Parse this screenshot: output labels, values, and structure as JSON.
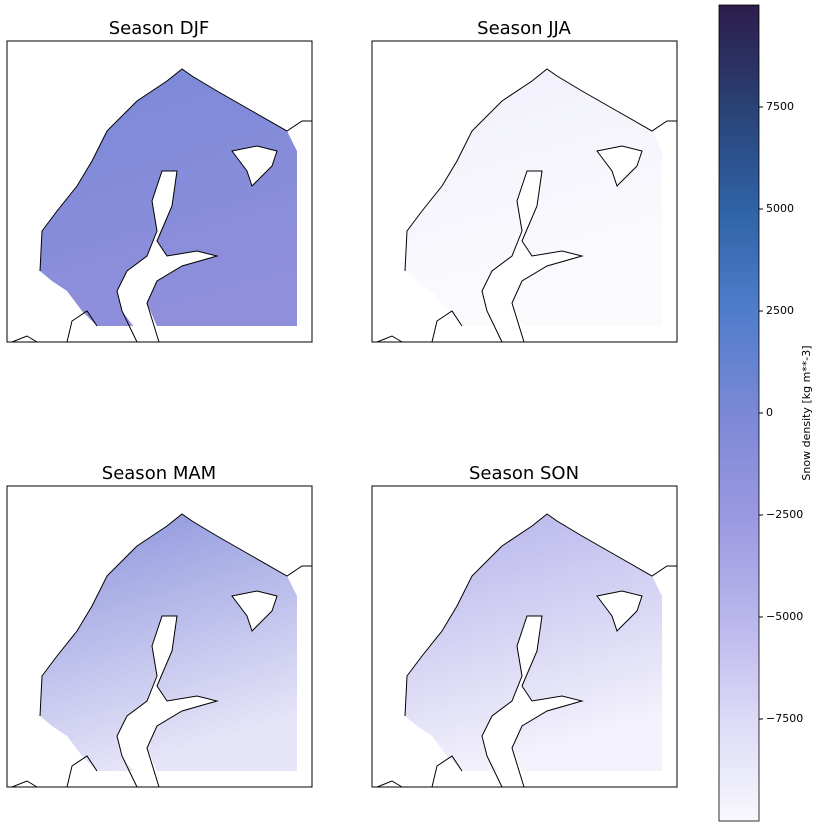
{
  "chart_data": {
    "type": "map",
    "panels": [
      {
        "title": "Season DJF",
        "colors": [
          "#7a89d8",
          "#8f8fdc"
        ]
      },
      {
        "title": "Season JJA",
        "colors": [
          "#f1f0fb",
          "#fbfbfe"
        ]
      },
      {
        "title": "Season MAM",
        "colors": [
          "#8a93dc",
          "#e6e4f8"
        ]
      },
      {
        "title": "Season SON",
        "colors": [
          "#b4b2ea",
          "#f3f2fc"
        ]
      }
    ],
    "colorbar_label": "Snow density [kg m**-3]",
    "ylim": [
      -10000,
      10000
    ],
    "yticks": [
      {
        "value": -7500,
        "label": "−7500"
      },
      {
        "value": -5000,
        "label": "−5000"
      },
      {
        "value": -2500,
        "label": "−2500"
      },
      0,
      2500,
      5000,
      7500
    ],
    "colormap": [
      "#f8f8fd",
      "#dcdaf6",
      "#b9b5ec",
      "#9a98e0",
      "#7b88d6",
      "#4f7dcb",
      "#2f62a6",
      "#2a4275",
      "#2c1c4a"
    ]
  }
}
